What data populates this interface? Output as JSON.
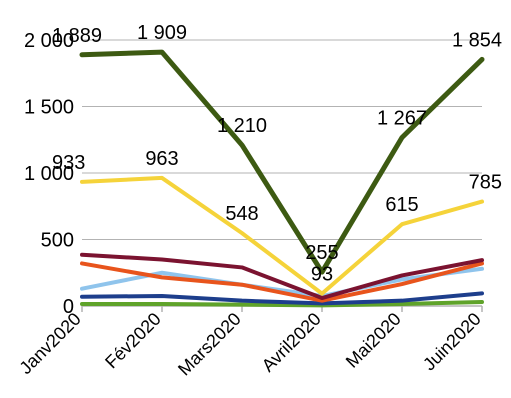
{
  "chart_data": {
    "type": "line",
    "categories": [
      "Janv2020",
      "Fév2020",
      "Mars2020",
      "Avril2020",
      "Mai2020",
      "Juin2020"
    ],
    "ylim": [
      0,
      2000
    ],
    "yticks": [
      0,
      500,
      1000,
      1500,
      2000
    ],
    "ytick_labels": [
      "0",
      "500",
      "1 000",
      "1 500",
      "2 000"
    ],
    "grid": "horizontal",
    "legend": "none",
    "series": [
      {
        "color": "#3d5a12",
        "width": 5,
        "values": [
          1889,
          1909,
          1210,
          255,
          1267,
          1854
        ],
        "labels": [
          "1 889",
          "1 909",
          "1 210",
          "255",
          "1 267",
          "1 854"
        ]
      },
      {
        "color": "#f5d33a",
        "width": 4,
        "values": [
          933,
          963,
          548,
          93,
          615,
          785
        ],
        "labels": [
          "933",
          "963",
          "548",
          "93",
          "615",
          "785"
        ]
      },
      {
        "color": "#7b1330",
        "width": 4,
        "values": [
          385,
          350,
          290,
          60,
          230,
          345
        ]
      },
      {
        "color": "#e8541c",
        "width": 4,
        "values": [
          320,
          215,
          160,
          40,
          165,
          320
        ]
      },
      {
        "color": "#8fc4ec",
        "width": 4,
        "values": [
          130,
          250,
          160,
          75,
          200,
          280
        ]
      },
      {
        "color": "#1d3e8c",
        "width": 4,
        "values": [
          70,
          75,
          40,
          20,
          40,
          95
        ]
      },
      {
        "color": "#5fa32a",
        "width": 4,
        "values": [
          15,
          15,
          10,
          5,
          15,
          30
        ]
      }
    ]
  }
}
